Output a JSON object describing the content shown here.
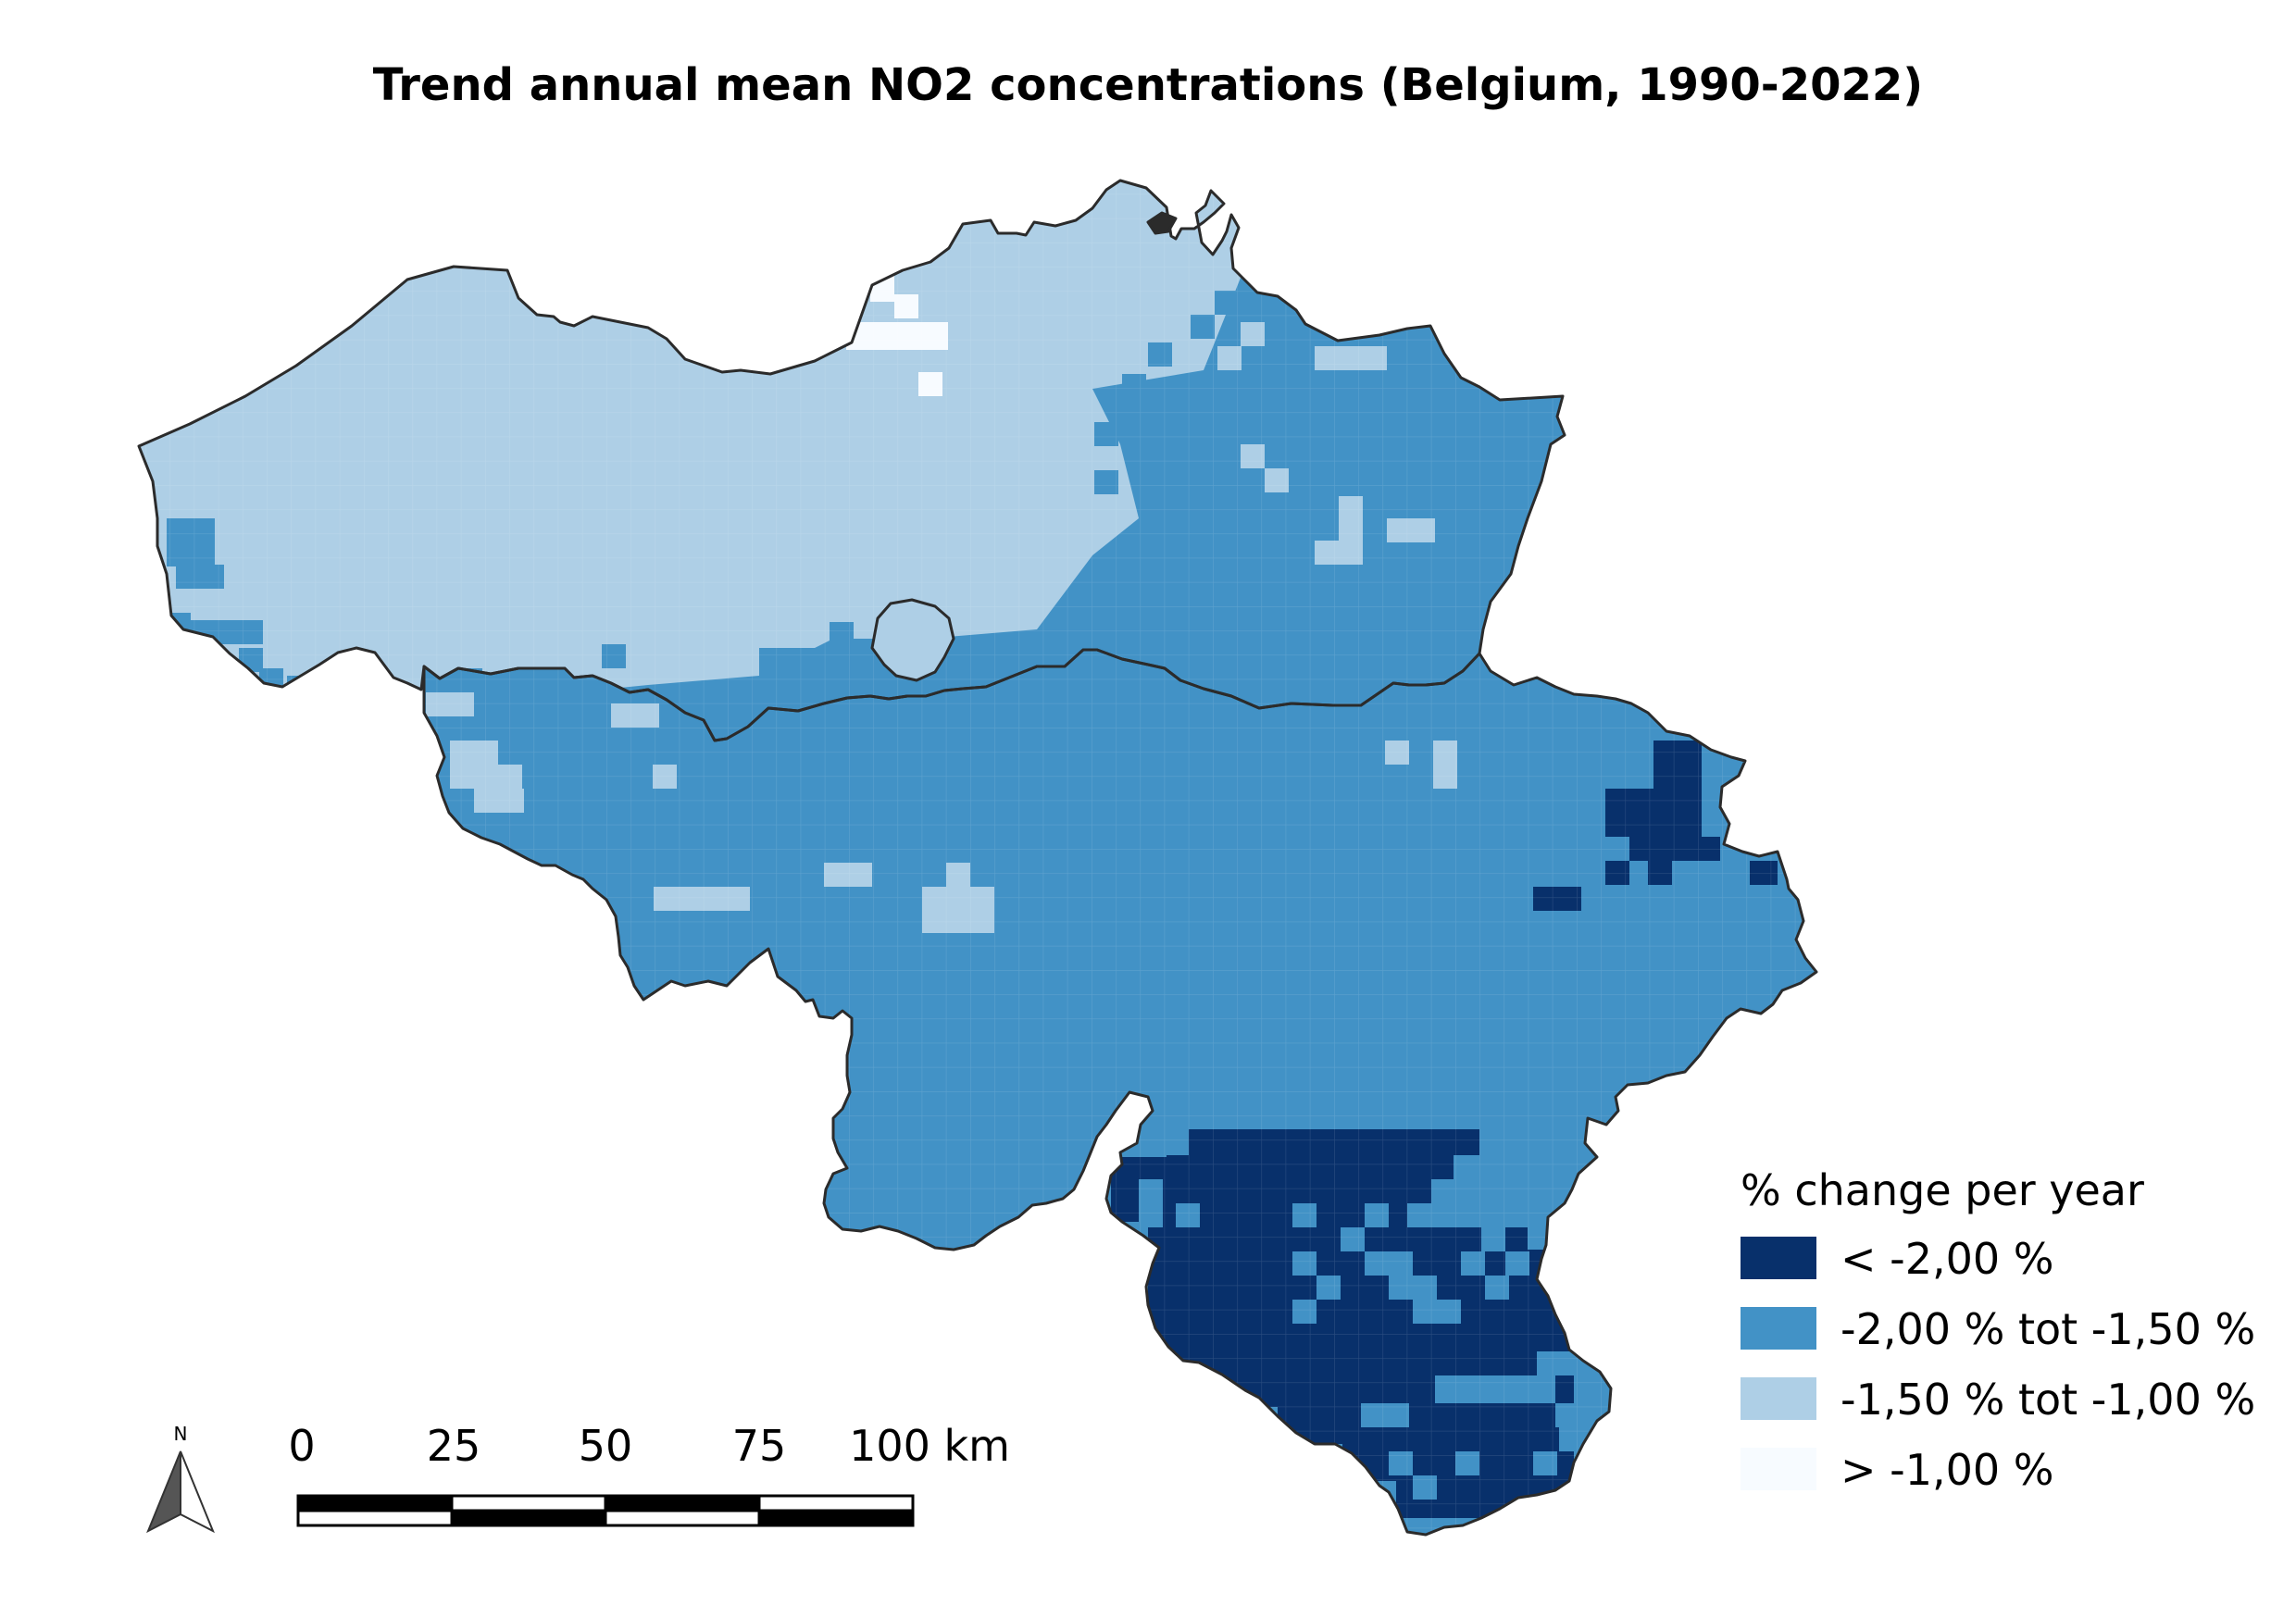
{
  "map": {
    "title": "Trend annual mean NO2 concentrations (Belgium, 1990-2022)",
    "legend": {
      "title": "% change per year",
      "classes": [
        {
          "label": "< -2,00 %",
          "color": "#08306b"
        },
        {
          "label": "-2,00 % tot -1,50 %",
          "color": "#4292c6"
        },
        {
          "label": "-1,50 % tot -1,00 %",
          "color": "#aecfe6"
        },
        {
          "label": "> -1,00 %",
          "color": "#f7fbff"
        }
      ]
    },
    "scale_bar": {
      "ticks": [
        "0",
        "25",
        "50",
        "75",
        "100 km"
      ]
    },
    "north_arrow": {
      "label": "N",
      "icon": "north-arrow-icon"
    }
  }
}
